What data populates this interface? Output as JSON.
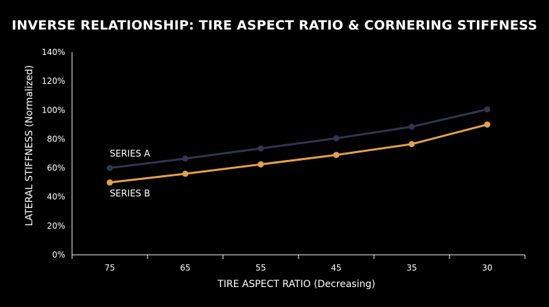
{
  "chart_data": {
    "type": "line",
    "title": "INVERSE RELATIONSHIP: TIRE ASPECT RATIO & CORNERING STIFFNESS",
    "xlabel": "TIRE ASPECT RATIO (Decreasing)",
    "ylabel": "LATERAL STIFFNESS (Normalized)",
    "categories": [
      "75",
      "65",
      "55",
      "45",
      "35",
      "30"
    ],
    "ylim": [
      0,
      140
    ],
    "yticks": [
      0,
      20,
      40,
      60,
      80,
      100,
      120,
      140
    ],
    "ytick_labels": [
      "0%",
      "20%",
      "40%",
      "60%",
      "80%",
      "100%",
      "120%",
      "140%"
    ],
    "grid": false,
    "series": [
      {
        "name": "SERIES A",
        "color": "#2f3552",
        "values": [
          60,
          66.5,
          73.5,
          80.5,
          88.5,
          100.5
        ]
      },
      {
        "name": "SERIES B",
        "color": "#e3a24a",
        "values": [
          50,
          56,
          62.5,
          69,
          76.5,
          90
        ]
      }
    ]
  }
}
